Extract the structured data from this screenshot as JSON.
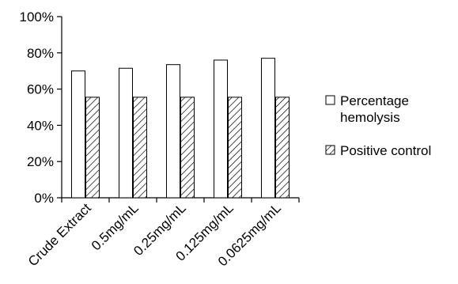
{
  "chart_data": {
    "type": "bar",
    "categories": [
      "Crude Extract",
      "0.5mg/mL",
      "0.25mg/mL",
      "0.125mg/mL",
      "0.0625mg/mL"
    ],
    "series": [
      {
        "name": "Percentage hemolysis",
        "values": [
          70,
          71.5,
          73.5,
          76,
          77
        ],
        "fill": "#ffffff",
        "pattern": "none"
      },
      {
        "name": "Positive control",
        "values": [
          55.5,
          55.5,
          55.5,
          55.5,
          55.5
        ],
        "fill": "#ffffff",
        "pattern": "diagonal-hatch"
      }
    ],
    "yticks": [
      "0%",
      "20%",
      "40%",
      "60%",
      "80%",
      "100%"
    ],
    "ylim": [
      0,
      100
    ],
    "legend_position": "right",
    "legend_lines": [
      [
        "Percentage",
        "hemolysis"
      ],
      [
        "Positive control"
      ]
    ],
    "grid": false,
    "title": "",
    "xlabel": "",
    "ylabel": "",
    "colors": {
      "axis": "#000000",
      "bar_outline": "#000000",
      "background": "#ffffff"
    }
  }
}
